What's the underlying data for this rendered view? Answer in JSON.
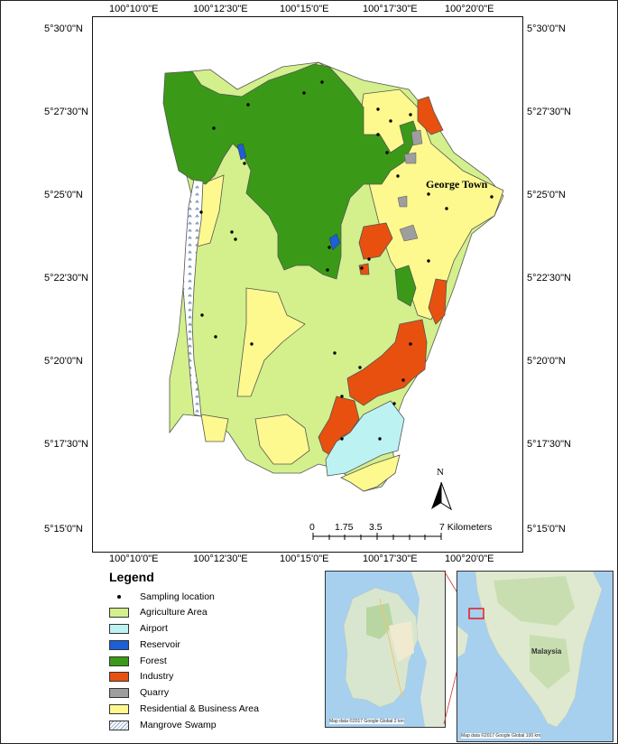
{
  "top_ticks": [
    "100°10'0\"E",
    "100°12'30\"E",
    "100°15'0\"E",
    "100°17'30\"E",
    "100°20'0\"E"
  ],
  "bottom_ticks": [
    "100°10'0\"E",
    "100°12'30\"E",
    "100°15'0\"E",
    "100°17'30\"E",
    "100°20'0\"E"
  ],
  "lat_ticks": [
    "5°30'0\"N",
    "5°27'30\"N",
    "5°25'0\"N",
    "5°22'30\"N",
    "5°20'0\"N",
    "5°17'30\"N",
    "5°15'0\"N"
  ],
  "city_label": "George Town",
  "north_label": "N",
  "scale": {
    "labels": [
      "0",
      "1.75",
      "3.5",
      "7 Kilometers"
    ]
  },
  "legend": {
    "title": "Legend",
    "items": [
      {
        "label": "Sampling location",
        "color": "#000000"
      },
      {
        "label": "Agriculture Area",
        "color": "#d3f08c"
      },
      {
        "label": "Airport",
        "color": "#bdf2f2"
      },
      {
        "label": "Reservoir",
        "color": "#1d5fd6"
      },
      {
        "label": "Forest",
        "color": "#3a9a18"
      },
      {
        "label": "Industry",
        "color": "#e8500f"
      },
      {
        "label": "Quarry",
        "color": "#9e9e9e"
      },
      {
        "label": "Residential & Business Area",
        "color": "#fdf98e"
      },
      {
        "label": "Mangrove Swamp",
        "color": "#ffffff"
      }
    ]
  },
  "inset_left": {
    "footer": "Map data ©2017 Google    Global    2 km"
  },
  "inset_right": {
    "country_label": "Malaysia",
    "footer": "Map data ©2017 Google    Global    100 km"
  }
}
